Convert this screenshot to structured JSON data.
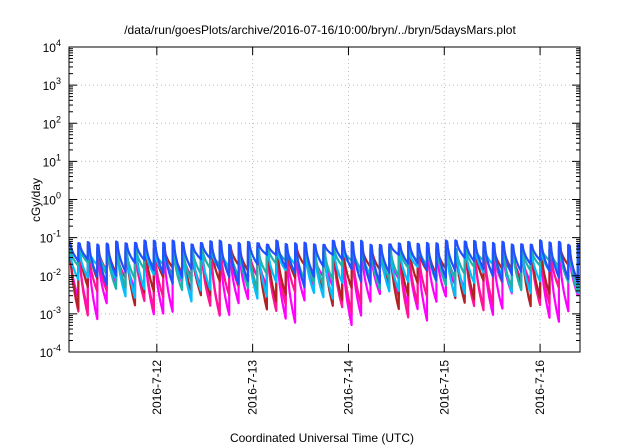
{
  "chart_data": {
    "type": "line",
    "title": "/data/run/goesPlots/archive/2016-07-16/10:00/bryn/../bryn/5daysMars.plot",
    "xlabel": "Coordinated Universal Time (UTC)",
    "ylabel": "cGy/day",
    "y_scale": "log",
    "ylim": [
      0.0001,
      10000
    ],
    "y_ticks": [
      {
        "value": 0.0001,
        "base": "10",
        "exp": "-4"
      },
      {
        "value": 0.001,
        "base": "10",
        "exp": "-3"
      },
      {
        "value": 0.01,
        "base": "10",
        "exp": "-2"
      },
      {
        "value": 0.1,
        "base": "10",
        "exp": "-1"
      },
      {
        "value": 1,
        "base": "10",
        "exp": "0"
      },
      {
        "value": 10,
        "base": "10",
        "exp": "1"
      },
      {
        "value": 100,
        "base": "10",
        "exp": "2"
      },
      {
        "value": 1000,
        "base": "10",
        "exp": "3"
      },
      {
        "value": 10000,
        "base": "10",
        "exp": "4"
      }
    ],
    "xlim": [
      "2016-07-11T02:00",
      "2016-07-16T10:00"
    ],
    "x_ticks": [
      "2016-7-12",
      "2016-7-13",
      "2016-7-14",
      "2016-7-15",
      "2016-7-16"
    ],
    "x_tick_dates": [
      "2016-07-12T00:00",
      "2016-07-13T00:00",
      "2016-07-14T00:00",
      "2016-07-15T00:00",
      "2016-07-16T00:00"
    ],
    "grid": true,
    "legend": "none",
    "cycle_hours": 2.36,
    "series": [
      {
        "color": "#ff00ff",
        "peak": 0.04,
        "trough": 0.0007
      },
      {
        "color": "#ff1493",
        "peak": 0.05,
        "trough": 0.0012
      },
      {
        "color": "#b22222",
        "peak": 0.065,
        "trough": 0.002
      },
      {
        "color": "#00bfff",
        "peak": 0.055,
        "trough": 0.003
      },
      {
        "color": "#20b2aa",
        "peak": 0.06,
        "trough": 0.005
      },
      {
        "color": "#2050ff",
        "peak": 0.085,
        "trough": 0.007
      }
    ]
  }
}
